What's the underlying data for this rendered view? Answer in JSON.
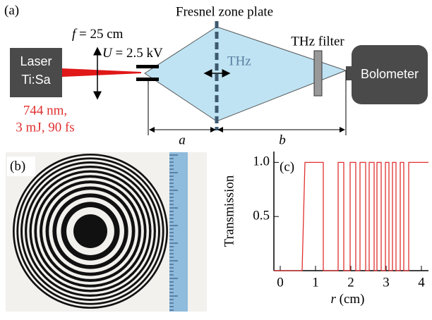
{
  "panel_a": {
    "label": "(a)",
    "zone_plate": "Fresnel zone plate",
    "laser_line1": "Laser",
    "laser_line2": "Ti:Sa",
    "focal": {
      "symbol": "f",
      "text": " = 25 cm"
    },
    "voltage": {
      "symbol": "U",
      "text": " = 2.5 kV"
    },
    "thz": "THz",
    "filter": "THz filter",
    "detector": "Bolometer",
    "laser_params1": "744 nm,",
    "laser_params2": "3 mJ, 90 fs",
    "dist_a": "a",
    "dist_b": "b"
  },
  "panel_b": {
    "label": "(b)"
  },
  "chart_data": {
    "type": "line",
    "label": "(c)",
    "ylabel": "Transmission",
    "xlabel": {
      "symbol": "r",
      "text": " (cm)"
    },
    "x": [
      -0.18,
      0.62,
      0.7,
      1.22,
      1.22,
      1.64,
      1.64,
      1.8,
      1.8,
      1.98,
      1.98,
      2.14,
      2.14,
      2.26,
      2.26,
      2.42,
      2.42,
      2.52,
      2.52,
      2.66,
      2.66,
      2.74,
      2.74,
      2.86,
      2.86,
      2.98,
      2.98,
      3.08,
      3.08,
      3.18,
      3.18,
      3.28,
      3.28,
      3.4,
      3.4,
      3.5,
      3.5,
      3.64,
      3.64,
      4.2
    ],
    "series": [
      {
        "color": "#e03030",
        "values": [
          0,
          0,
          1,
          1,
          0,
          0,
          1,
          1,
          0,
          0,
          1,
          1,
          0,
          0,
          1,
          1,
          0,
          0,
          1,
          1,
          0,
          0,
          1,
          1,
          0,
          0,
          1,
          1,
          0,
          0,
          1,
          1,
          0,
          0,
          1,
          1,
          0,
          0,
          1,
          1
        ]
      }
    ],
    "xlim": [
      -0.18,
      4.2
    ],
    "xticks": [
      0,
      1,
      2,
      3,
      4
    ],
    "ylim": [
      0,
      1.1
    ],
    "yticks": [
      0.5,
      {
        "value": 1,
        "label": "1.0"
      }
    ]
  }
}
